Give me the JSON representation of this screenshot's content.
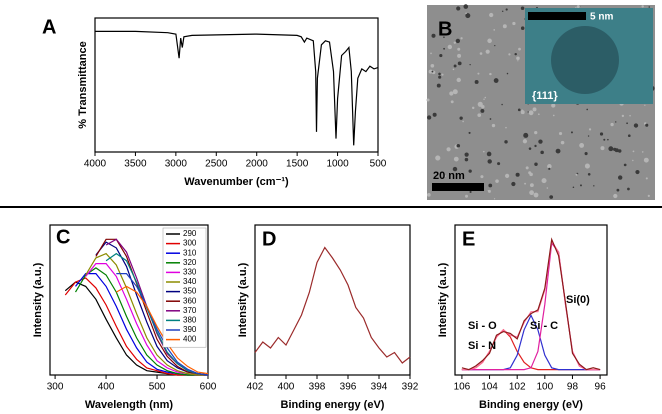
{
  "chart_data": [
    {
      "type": "line",
      "panel_label": "A",
      "x_label": "Wavenumber (cm⁻¹)",
      "y_label": "% Transmittance",
      "xlim": [
        4000,
        500
      ],
      "xticks": [
        4000,
        3500,
        3000,
        2500,
        2000,
        1500,
        1000,
        500
      ],
      "ylim": [
        0,
        100
      ],
      "x": [
        4000,
        3500,
        3100,
        3000,
        2960,
        2940,
        2920,
        2900,
        2800,
        2000,
        1500,
        1450,
        1410,
        1380,
        1300,
        1270,
        1260,
        1250,
        1200,
        1150,
        1100,
        1050,
        1020,
        1000,
        950,
        900,
        860,
        830,
        800,
        780,
        750,
        700,
        650,
        600,
        550,
        500
      ],
      "series": [
        {
          "color": "#000000",
          "values": [
            90,
            90,
            89,
            88,
            70,
            85,
            78,
            86,
            87,
            88,
            87,
            86,
            82,
            85,
            83,
            60,
            15,
            55,
            80,
            83,
            82,
            60,
            10,
            40,
            72,
            75,
            78,
            60,
            5,
            30,
            55,
            62,
            60,
            64,
            62,
            63
          ]
        }
      ]
    },
    {
      "type": "line",
      "panel_label": "C",
      "x_label": "Wavelength (nm)",
      "y_label": "Intensity (a.u.)",
      "xlim": [
        290,
        600
      ],
      "xticks": [
        300,
        400,
        500,
        600
      ],
      "ylim": [
        0,
        105
      ],
      "legend": "upper right",
      "x": [
        300,
        320,
        340,
        360,
        380,
        400,
        420,
        440,
        460,
        480,
        500,
        520,
        540,
        560,
        580,
        600
      ],
      "series": [
        {
          "name": "290",
          "color": "#000000",
          "values": [
            null,
            59,
            65,
            62,
            53,
            39,
            26,
            14,
            7,
            3,
            2,
            1,
            0,
            0,
            0,
            0
          ]
        },
        {
          "name": "300",
          "color": "#e00000",
          "values": [
            null,
            56,
            65,
            68,
            61,
            49,
            34,
            20,
            11,
            5,
            3,
            1,
            0,
            0,
            0,
            0
          ]
        },
        {
          "name": "310",
          "color": "#0000e0",
          "values": [
            null,
            null,
            62,
            71,
            71,
            62,
            48,
            32,
            19,
            9,
            4,
            2,
            1,
            0,
            0,
            0
          ]
        },
        {
          "name": "320",
          "color": "#008000",
          "values": [
            null,
            null,
            58,
            70,
            75,
            70,
            58,
            41,
            26,
            14,
            7,
            3,
            1,
            0,
            0,
            0
          ]
        },
        {
          "name": "330",
          "color": "#e000e0",
          "values": [
            null,
            null,
            null,
            69,
            78,
            78,
            69,
            53,
            36,
            21,
            10,
            5,
            2,
            1,
            0,
            0
          ]
        },
        {
          "name": "340",
          "color": "#8c8c00",
          "values": [
            null,
            null,
            null,
            70,
            82,
            85,
            77,
            61,
            43,
            26,
            14,
            7,
            3,
            1,
            0,
            0
          ]
        },
        {
          "name": "350",
          "color": "#000080",
          "values": [
            null,
            null,
            null,
            null,
            84,
            93,
            89,
            76,
            56,
            37,
            20,
            10,
            5,
            2,
            1,
            0
          ]
        },
        {
          "name": "360",
          "color": "#800000",
          "values": [
            null,
            null,
            null,
            null,
            83,
            95,
            95,
            83,
            64,
            44,
            25,
            13,
            6,
            2,
            1,
            0
          ]
        },
        {
          "name": "370",
          "color": "#800080",
          "values": [
            null,
            null,
            null,
            null,
            null,
            91,
            95,
            86,
            68,
            48,
            29,
            15,
            8,
            3,
            1,
            0
          ]
        },
        {
          "name": "380",
          "color": "#008080",
          "values": [
            null,
            null,
            null,
            null,
            null,
            80,
            85,
            80,
            65,
            47,
            30,
            16,
            8,
            3,
            1,
            0
          ]
        },
        {
          "name": "390",
          "color": "#2040c0",
          "values": [
            null,
            null,
            null,
            null,
            null,
            null,
            71,
            71,
            62,
            48,
            32,
            19,
            9,
            4,
            1,
            0
          ]
        },
        {
          "name": "400",
          "color": "#ff6000",
          "values": [
            null,
            null,
            null,
            null,
            null,
            null,
            58,
            62,
            58,
            48,
            34,
            22,
            12,
            6,
            2,
            1
          ]
        }
      ]
    },
    {
      "type": "line",
      "panel_label": "D",
      "x_label": "Binding energy (eV)",
      "y_label": "Intensity (a.u.)",
      "xlim": [
        402,
        392
      ],
      "xticks": [
        402,
        400,
        398,
        396,
        394,
        392
      ],
      "ylim": [
        0,
        100
      ],
      "x": [
        402,
        401.5,
        401,
        400.5,
        400,
        399.5,
        399,
        398.5,
        398,
        397.5,
        397,
        396.5,
        396,
        395.5,
        395,
        394.5,
        394,
        393.5,
        393,
        392.5,
        392
      ],
      "series": [
        {
          "color": "#9b2b2b",
          "values": [
            15,
            22,
            18,
            25,
            20,
            30,
            40,
            55,
            75,
            85,
            78,
            70,
            60,
            45,
            38,
            25,
            18,
            12,
            15,
            8,
            12
          ]
        }
      ]
    },
    {
      "type": "line",
      "panel_label": "E",
      "x_label": "Binding energy (eV)",
      "y_label": "Intensity (a.u.)",
      "xlim": [
        106.5,
        95.5
      ],
      "xticks": [
        106,
        104,
        102,
        100,
        98,
        96
      ],
      "ylim": [
        -3,
        80
      ],
      "annotations": [
        "Si - O",
        "Si - N",
        "Si - C",
        "Si(0)"
      ],
      "x": [
        106,
        105.5,
        105,
        104.5,
        104,
        103.5,
        103,
        102.5,
        102,
        101.5,
        101,
        100.5,
        100,
        99.5,
        99,
        98.5,
        98,
        97.5,
        97,
        96.5,
        96
      ],
      "series": [
        {
          "color": "#e02020",
          "values": [
            0,
            0,
            1,
            4,
            10,
            18,
            22,
            18,
            10,
            4,
            1,
            0,
            0,
            0,
            0,
            0,
            0,
            0,
            0,
            0,
            0
          ]
        },
        {
          "color": "#3030d0",
          "values": [
            0,
            0,
            0,
            0,
            0,
            0,
            0,
            1,
            8,
            22,
            30,
            22,
            8,
            1,
            0,
            0,
            0,
            0,
            0,
            0,
            0
          ]
        },
        {
          "color": "#e020a0",
          "values": [
            0,
            0,
            0,
            0,
            0,
            0,
            0,
            0,
            0,
            0,
            1,
            10,
            36,
            70,
            65,
            36,
            10,
            2,
            0,
            0,
            0
          ]
        },
        {
          "color": "#ff6f9b",
          "values": [
            0,
            0,
            1,
            4,
            10,
            18,
            22,
            19,
            18,
            26,
            32,
            32,
            44,
            71,
            65,
            36,
            10,
            2,
            0,
            0,
            0
          ]
        },
        {
          "color": "#8b1a1a",
          "values": [
            1,
            0,
            2,
            5,
            9,
            19,
            21,
            20,
            17,
            27,
            31,
            33,
            45,
            72,
            63,
            37,
            9,
            3,
            0,
            1,
            0
          ]
        }
      ]
    }
  ],
  "tem_image": {
    "panel_label": "B",
    "inset_scale": "5 nm",
    "lattice_plane": "{111}",
    "scale": "20 nm"
  }
}
